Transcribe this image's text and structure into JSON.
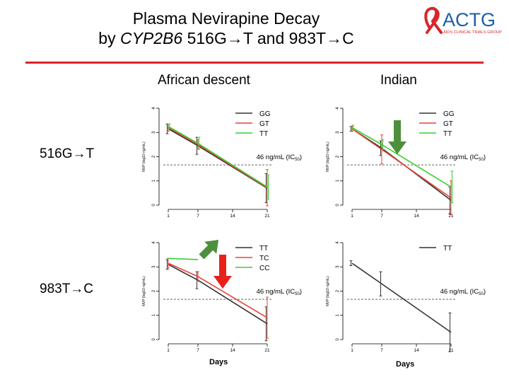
{
  "header": {
    "title_line1": "Plasma Nevirapine Decay",
    "title_by": "by ",
    "title_gene": "CYP2B6",
    "title_rest": " 516G→T and 983T→C",
    "logo_text": "ACTG",
    "logo_sub": "AIDS CLINICAL TRIALS GROUP",
    "rule_color": "#d8262a"
  },
  "column_labels": [
    "African descent",
    "Indian"
  ],
  "row_labels": [
    "516G→T",
    "983T→C"
  ],
  "colors": {
    "black": "#333333",
    "red": "#e8413a",
    "green": "#36d12f",
    "arrow_green": "#4e8f3c",
    "arrow_red": "#e8201c"
  },
  "chart_data": [
    {
      "type": "line",
      "panel": "516G→T / African descent",
      "x": [
        1,
        7,
        21
      ],
      "xticks": [
        1,
        7,
        14,
        21
      ],
      "yticks": [
        0,
        1,
        2,
        3,
        4
      ],
      "xlim": [
        0,
        22
      ],
      "ylim": [
        0,
        4
      ],
      "ylabel": "NVP (log10 ng/mL)",
      "series": [
        {
          "name": "GG",
          "color": "#333333",
          "values": [
            3.15,
            2.45,
            0.7
          ],
          "err": [
            0.2,
            0.35,
            0.6
          ]
        },
        {
          "name": "GT",
          "color": "#e8413a",
          "values": [
            3.2,
            2.5,
            0.72
          ],
          "err": [
            0.15,
            0.2,
            0.75
          ]
        },
        {
          "name": "TT",
          "color": "#36d12f",
          "values": [
            3.25,
            2.55,
            0.75
          ],
          "err": [
            0.1,
            0.25,
            0.5
          ]
        }
      ],
      "reference": {
        "y": 1.66,
        "label_main": "46 ng/mL (IC",
        "label_sub": "50",
        "label_end": ")"
      },
      "legend": "top-right",
      "xlabel": ""
    },
    {
      "type": "line",
      "panel": "516G→T / Indian",
      "x": [
        1,
        7,
        21
      ],
      "xticks": [
        1,
        7,
        14,
        21
      ],
      "yticks": [
        0,
        1,
        2,
        3,
        4
      ],
      "xlim": [
        0,
        22
      ],
      "ylim": [
        0,
        4
      ],
      "ylabel": "NVP (log10 ng/mL)",
      "series": [
        {
          "name": "GG",
          "color": "#333333",
          "values": [
            3.15,
            2.35,
            0.2
          ],
          "err": [
            0.1,
            0.3,
            0.55
          ]
        },
        {
          "name": "GT",
          "color": "#e8413a",
          "values": [
            3.15,
            2.3,
            0.3
          ],
          "err": [
            0.1,
            0.6,
            0.7
          ]
        },
        {
          "name": "TT",
          "color": "#36d12f",
          "values": [
            3.2,
            2.5,
            0.75
          ],
          "err": [
            0.1,
            0.2,
            0.65
          ]
        }
      ],
      "reference": {
        "y": 1.66,
        "label_main": "46 ng/mL (IC",
        "label_sub": "50",
        "label_end": ")"
      },
      "legend": "top-right",
      "xlabel": "",
      "annotation": {
        "type": "arrow-down",
        "color": "#4e8f3c"
      }
    },
    {
      "type": "line",
      "panel": "983T→C / African descent",
      "x": [
        1,
        7,
        21
      ],
      "xticks": [
        1,
        7,
        14,
        21
      ],
      "yticks": [
        0,
        1,
        2,
        3,
        4
      ],
      "xlim": [
        0,
        22
      ],
      "ylim": [
        0,
        4
      ],
      "ylabel": "NVP (log10 ng/mL)",
      "series": [
        {
          "name": "TT",
          "color": "#333333",
          "values": [
            3.1,
            2.45,
            0.65
          ],
          "err": [
            0.2,
            0.35,
            0.7
          ]
        },
        {
          "name": "TC",
          "color": "#e8413a",
          "values": [
            3.15,
            2.6,
            0.9
          ],
          "err": [
            0.2,
            0.2,
            0.85
          ]
        },
        {
          "name": "CC",
          "color": "#36d12f",
          "values": [
            3.35,
            3.3
          ],
          "x": [
            1,
            7
          ],
          "err": [
            0,
            0
          ]
        }
      ],
      "reference": {
        "y": 1.66,
        "label_main": "46 ng/mL (IC",
        "label_sub": "50",
        "label_end": ")"
      },
      "legend": "top-right",
      "xlabel": "Days",
      "annotations": [
        {
          "type": "arrow-diag",
          "color": "#4e8f3c"
        },
        {
          "type": "arrow-down",
          "color": "#e8201c"
        }
      ]
    },
    {
      "type": "line",
      "panel": "983T→C / Indian",
      "x": [
        1,
        7,
        21
      ],
      "xticks": [
        1,
        7,
        14,
        21
      ],
      "yticks": [
        0,
        1,
        2,
        3,
        4
      ],
      "xlim": [
        0,
        22
      ],
      "ylim": [
        0,
        4
      ],
      "ylabel": "NVP (log10 ng/mL)",
      "series": [
        {
          "name": "TT",
          "color": "#333333",
          "values": [
            3.15,
            2.3,
            0.3
          ],
          "err": [
            0.1,
            0.5,
            0.8
          ]
        }
      ],
      "reference": {
        "y": 1.66,
        "label_main": "46 ng/mL (IC",
        "label_sub": "50",
        "label_end": ")"
      },
      "legend": "top-right",
      "xlabel": "Days"
    }
  ]
}
